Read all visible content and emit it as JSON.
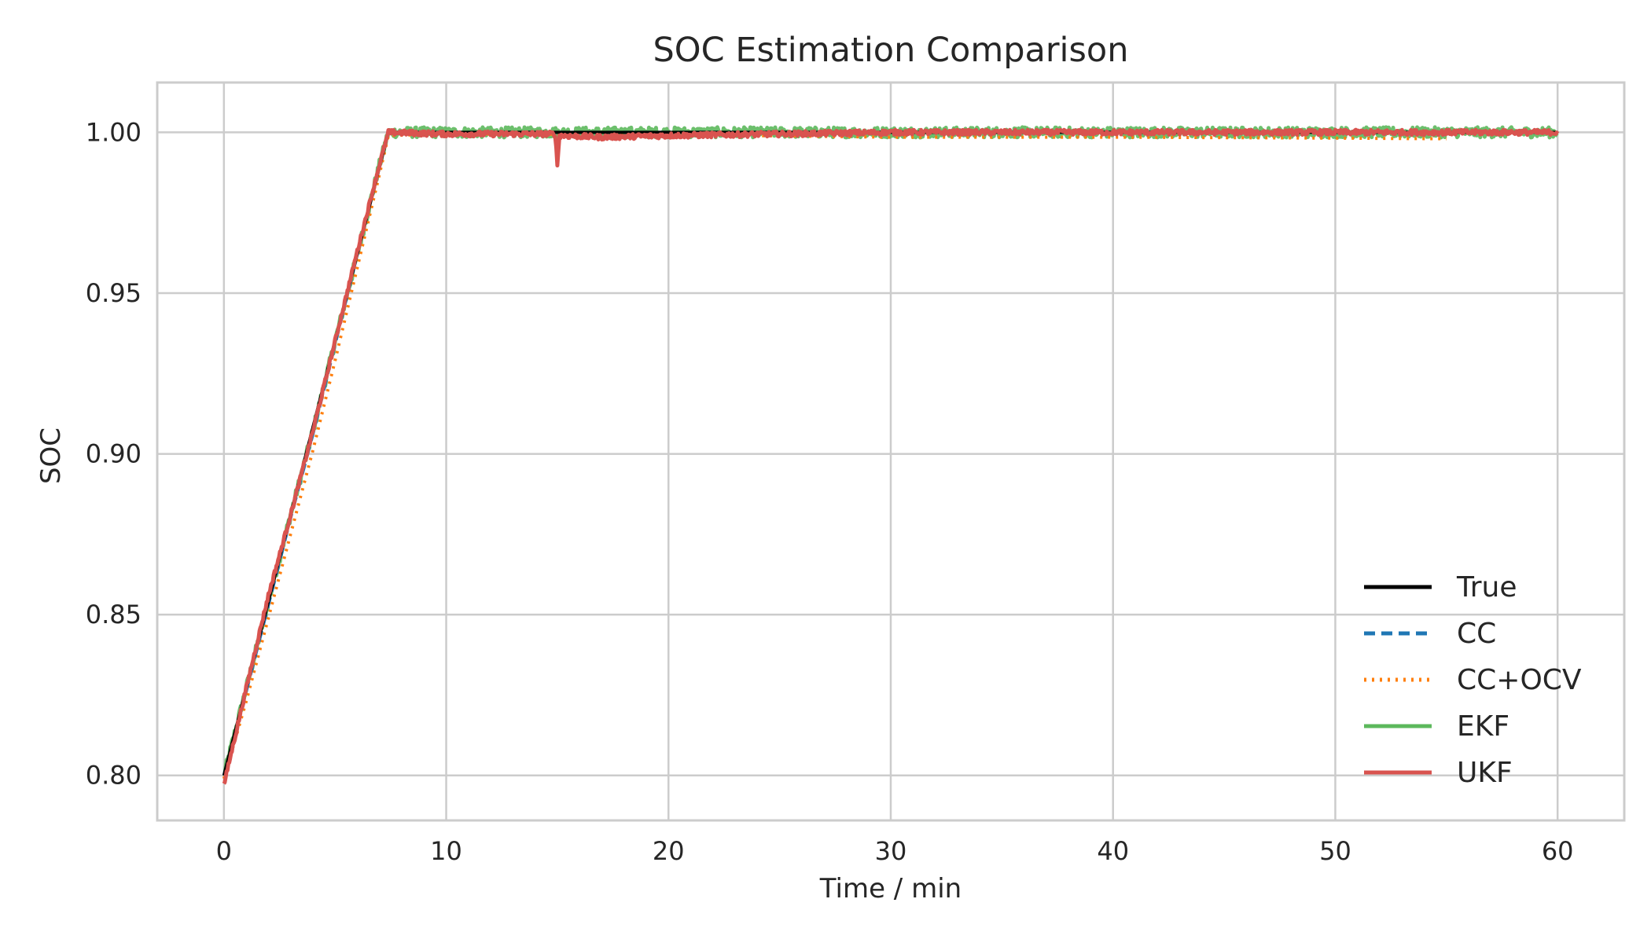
{
  "chart_data": {
    "type": "line",
    "title": "SOC Estimation Comparison",
    "xlabel": "Time / min",
    "ylabel": "SOC",
    "xlim": [
      -3,
      63
    ],
    "ylim": [
      0.786,
      1.0155
    ],
    "xticks": [
      0,
      10,
      20,
      30,
      40,
      50,
      60
    ],
    "xtick_labels": [
      "0",
      "10",
      "20",
      "30",
      "40",
      "50",
      "60"
    ],
    "yticks": [
      0.8,
      0.85,
      0.9,
      0.95,
      1.0
    ],
    "ytick_labels": [
      "0.80",
      "0.85",
      "0.90",
      "0.95",
      "1.00"
    ],
    "grid": true,
    "legend_position": "lower-right",
    "series": [
      {
        "name": "True",
        "color": "#000000",
        "style": "solid",
        "x": [
          0,
          7.4,
          60
        ],
        "y": [
          0.8,
          1.0,
          1.0
        ]
      },
      {
        "name": "CC",
        "color": "#1f77b4",
        "style": "dashed",
        "x": [
          0,
          1,
          2,
          3,
          4,
          5,
          6,
          7,
          7.4,
          10,
          20,
          30,
          40,
          50,
          60
        ],
        "y": [
          0.8,
          0.826,
          0.853,
          0.88,
          0.906,
          0.934,
          0.962,
          0.99,
          1.0,
          1.0,
          1.0,
          1.0,
          1.0,
          1.0,
          1.0
        ]
      },
      {
        "name": "CC+OCV",
        "color": "#ff7f0e",
        "style": "dotted",
        "x": [
          0,
          1,
          2,
          3,
          4,
          5,
          6,
          7,
          7.4,
          10,
          20,
          30,
          40,
          50,
          55
        ],
        "y": [
          0.799,
          0.823,
          0.849,
          0.875,
          0.901,
          0.929,
          0.958,
          0.987,
          0.999,
          0.9995,
          0.9993,
          0.9985,
          0.9985,
          0.9982,
          0.998
        ]
      },
      {
        "name": "EKF",
        "color": "#5cb85c",
        "style": "solid",
        "x": [
          0,
          1,
          2,
          3,
          4,
          5,
          6,
          7,
          7.4,
          10,
          15,
          20,
          25,
          30,
          35,
          40,
          45,
          50,
          55,
          60
        ],
        "y": [
          0.8,
          0.827,
          0.854,
          0.881,
          0.907,
          0.935,
          0.962,
          0.99,
          1.0,
          1.0,
          1.0,
          1.0,
          1.0,
          1.0,
          1.0,
          1.0,
          1.0,
          1.0,
          1.0,
          1.0
        ],
        "noise": 0.0016
      },
      {
        "name": "UKF",
        "color": "#d9534f",
        "style": "solid",
        "x": [
          0,
          1,
          2,
          3,
          4,
          5,
          6,
          7,
          7.4,
          10,
          14.9,
          15.0,
          15.1,
          17,
          20,
          25,
          30,
          40,
          50,
          60
        ],
        "y": [
          0.797,
          0.827,
          0.856,
          0.881,
          0.907,
          0.935,
          0.963,
          0.99,
          1.0,
          0.9995,
          0.9995,
          0.99,
          0.999,
          0.9985,
          0.999,
          0.9995,
          1.0,
          1.0,
          1.0,
          1.0
        ],
        "noise": 0.0008
      }
    ]
  }
}
